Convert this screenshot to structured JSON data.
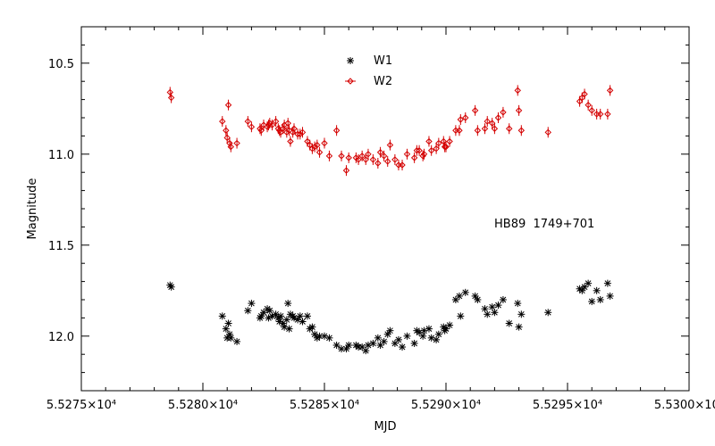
{
  "chart_data": {
    "type": "scatter",
    "xlabel": "MJD",
    "ylabel": "Magnitude",
    "xlim": [
      52750,
      53000
    ],
    "ylim": [
      12.3,
      10.3
    ],
    "y_inverted": true,
    "x_ticks": [
      52750,
      52800,
      52850,
      52900,
      52950,
      53000
    ],
    "x_tick_labels": [
      "5.5275×10⁴",
      "5.5280×10⁴",
      "5.5285×10⁴",
      "5.5290×10⁴",
      "5.5295×10⁴",
      "5.5300×10⁴"
    ],
    "y_ticks": [
      10.5,
      11.0,
      11.5,
      12.0
    ],
    "y_tick_labels": [
      "10.5",
      "11.0",
      "11.5",
      "12.0"
    ],
    "annotation": "HB89  1749+701",
    "legend_placement": "top-center",
    "series": [
      {
        "name": "W1",
        "color": "#000000",
        "marker": "asterisk",
        "points": [
          [
            52786.5,
            11.72
          ],
          [
            52787.0,
            11.73
          ],
          [
            52808.0,
            11.89
          ],
          [
            52809.5,
            11.96
          ],
          [
            52810.0,
            12.01
          ],
          [
            52810.5,
            11.93
          ],
          [
            52811.0,
            11.99
          ],
          [
            52811.5,
            12.01
          ],
          [
            52814.0,
            12.03
          ],
          [
            52818.5,
            11.86
          ],
          [
            52820.0,
            11.82
          ],
          [
            52823.5,
            11.9
          ],
          [
            52824.0,
            11.89
          ],
          [
            52825.0,
            11.87
          ],
          [
            52826.5,
            11.85
          ],
          [
            52827.0,
            11.9
          ],
          [
            52827.5,
            11.86
          ],
          [
            52828.5,
            11.89
          ],
          [
            52830.0,
            11.88
          ],
          [
            52831.0,
            11.9
          ],
          [
            52831.5,
            11.92
          ],
          [
            52832.0,
            11.89
          ],
          [
            52833.0,
            11.93
          ],
          [
            52833.5,
            11.95
          ],
          [
            52834.5,
            11.91
          ],
          [
            52835.0,
            11.82
          ],
          [
            52835.5,
            11.96
          ],
          [
            52836.0,
            11.88
          ],
          [
            52837.0,
            11.89
          ],
          [
            52837.5,
            11.9
          ],
          [
            52839.0,
            11.91
          ],
          [
            52840.0,
            11.89
          ],
          [
            52841.0,
            11.92
          ],
          [
            52843.0,
            11.89
          ],
          [
            52844.0,
            11.96
          ],
          [
            52845.0,
            11.95
          ],
          [
            52846.0,
            11.99
          ],
          [
            52847.0,
            12.01
          ],
          [
            52848.0,
            12.0
          ],
          [
            52850.0,
            12.0
          ],
          [
            52852.0,
            12.01
          ],
          [
            52855.0,
            12.05
          ],
          [
            52857.0,
            12.07
          ],
          [
            52859.0,
            12.07
          ],
          [
            52860.0,
            12.05
          ],
          [
            52863.0,
            12.05
          ],
          [
            52864.0,
            12.06
          ],
          [
            52865.5,
            12.06
          ],
          [
            52867.0,
            12.08
          ],
          [
            52868.0,
            12.05
          ],
          [
            52870.0,
            12.04
          ],
          [
            52872.0,
            12.01
          ],
          [
            52873.0,
            12.05
          ],
          [
            52874.5,
            12.03
          ],
          [
            52876.0,
            11.99
          ],
          [
            52877.0,
            11.97
          ],
          [
            52879.0,
            12.04
          ],
          [
            52880.5,
            12.02
          ],
          [
            52882.0,
            12.06
          ],
          [
            52884.0,
            12.0
          ],
          [
            52887.0,
            12.04
          ],
          [
            52888.0,
            11.97
          ],
          [
            52889.0,
            11.98
          ],
          [
            52890.5,
            12.0
          ],
          [
            52891.0,
            11.97
          ],
          [
            52893.0,
            11.96
          ],
          [
            52894.0,
            12.01
          ],
          [
            52896.0,
            12.02
          ],
          [
            52897.0,
            11.99
          ],
          [
            52899.0,
            11.95
          ],
          [
            52899.5,
            11.97
          ],
          [
            52900.0,
            11.96
          ],
          [
            52901.5,
            11.94
          ],
          [
            52904.0,
            11.8
          ],
          [
            52905.5,
            11.78
          ],
          [
            52906.0,
            11.89
          ],
          [
            52908.0,
            11.76
          ],
          [
            52912.0,
            11.78
          ],
          [
            52913.0,
            11.8
          ],
          [
            52916.0,
            11.85
          ],
          [
            52917.0,
            11.88
          ],
          [
            52919.0,
            11.84
          ],
          [
            52920.0,
            11.87
          ],
          [
            52921.5,
            11.83
          ],
          [
            52923.5,
            11.8
          ],
          [
            52926.0,
            11.93
          ],
          [
            52929.5,
            11.82
          ],
          [
            52930.0,
            11.95
          ],
          [
            52931.0,
            11.88
          ],
          [
            52942.0,
            11.87
          ],
          [
            52955.0,
            11.74
          ],
          [
            52956.0,
            11.75
          ],
          [
            52957.0,
            11.73
          ],
          [
            52958.5,
            11.71
          ],
          [
            52960.0,
            11.81
          ],
          [
            52962.0,
            11.75
          ],
          [
            52963.5,
            11.8
          ],
          [
            52966.5,
            11.71
          ],
          [
            52967.5,
            11.78
          ]
        ]
      },
      {
        "name": "W2",
        "color": "#d40000",
        "marker": "diamond",
        "points": [
          [
            52786.5,
            10.66
          ],
          [
            52787.0,
            10.69
          ],
          [
            52808.0,
            10.82
          ],
          [
            52809.5,
            10.87
          ],
          [
            52810.0,
            10.91
          ],
          [
            52810.5,
            10.73
          ],
          [
            52811.0,
            10.94
          ],
          [
            52811.5,
            10.96
          ],
          [
            52814.0,
            10.94
          ],
          [
            52818.5,
            10.82
          ],
          [
            52820.0,
            10.85
          ],
          [
            52823.5,
            10.86
          ],
          [
            52824.0,
            10.87
          ],
          [
            52825.0,
            10.84
          ],
          [
            52826.5,
            10.85
          ],
          [
            52827.0,
            10.84
          ],
          [
            52827.5,
            10.83
          ],
          [
            52828.5,
            10.84
          ],
          [
            52830.0,
            10.82
          ],
          [
            52831.0,
            10.86
          ],
          [
            52831.5,
            10.87
          ],
          [
            52832.0,
            10.88
          ],
          [
            52833.0,
            10.86
          ],
          [
            52833.5,
            10.84
          ],
          [
            52834.5,
            10.88
          ],
          [
            52835.0,
            10.83
          ],
          [
            52835.5,
            10.87
          ],
          [
            52836.0,
            10.93
          ],
          [
            52837.0,
            10.88
          ],
          [
            52837.5,
            10.86
          ],
          [
            52839.0,
            10.89
          ],
          [
            52840.0,
            10.89
          ],
          [
            52841.0,
            10.88
          ],
          [
            52843.0,
            10.93
          ],
          [
            52844.0,
            10.95
          ],
          [
            52845.0,
            10.97
          ],
          [
            52846.0,
            10.96
          ],
          [
            52847.0,
            10.95
          ],
          [
            52848.0,
            10.99
          ],
          [
            52850.0,
            10.94
          ],
          [
            52852.0,
            11.01
          ],
          [
            52855.0,
            10.87
          ],
          [
            52857.0,
            11.01
          ],
          [
            52859.0,
            11.09
          ],
          [
            52860.0,
            11.02
          ],
          [
            52863.0,
            11.02
          ],
          [
            52864.0,
            11.03
          ],
          [
            52865.5,
            11.01
          ],
          [
            52867.0,
            11.03
          ],
          [
            52868.0,
            11.0
          ],
          [
            52870.0,
            11.03
          ],
          [
            52872.0,
            11.05
          ],
          [
            52873.0,
            10.99
          ],
          [
            52874.5,
            11.01
          ],
          [
            52876.0,
            11.04
          ],
          [
            52877.0,
            10.95
          ],
          [
            52879.0,
            11.03
          ],
          [
            52880.5,
            11.06
          ],
          [
            52882.0,
            11.06
          ],
          [
            52884.0,
            11.0
          ],
          [
            52887.0,
            11.02
          ],
          [
            52888.0,
            10.98
          ],
          [
            52889.0,
            10.98
          ],
          [
            52890.5,
            11.01
          ],
          [
            52891.0,
            11.0
          ],
          [
            52893.0,
            10.93
          ],
          [
            52894.0,
            10.98
          ],
          [
            52896.0,
            10.97
          ],
          [
            52897.0,
            10.94
          ],
          [
            52899.0,
            10.93
          ],
          [
            52899.5,
            10.96
          ],
          [
            52900.0,
            10.96
          ],
          [
            52901.5,
            10.93
          ],
          [
            52904.0,
            10.87
          ],
          [
            52905.5,
            10.87
          ],
          [
            52906.0,
            10.81
          ],
          [
            52908.0,
            10.8
          ],
          [
            52912.0,
            10.76
          ],
          [
            52913.0,
            10.87
          ],
          [
            52916.0,
            10.86
          ],
          [
            52917.0,
            10.82
          ],
          [
            52919.0,
            10.83
          ],
          [
            52920.0,
            10.86
          ],
          [
            52921.5,
            10.8
          ],
          [
            52923.5,
            10.77
          ],
          [
            52926.0,
            10.86
          ],
          [
            52929.5,
            10.65
          ],
          [
            52930.0,
            10.76
          ],
          [
            52931.0,
            10.87
          ],
          [
            52942.0,
            10.88
          ],
          [
            52955.0,
            10.71
          ],
          [
            52956.0,
            10.69
          ],
          [
            52957.0,
            10.67
          ],
          [
            52958.5,
            10.73
          ],
          [
            52960.0,
            10.76
          ],
          [
            52962.0,
            10.78
          ],
          [
            52963.5,
            10.78
          ],
          [
            52966.5,
            10.78
          ],
          [
            52967.5,
            10.65
          ]
        ]
      }
    ]
  }
}
